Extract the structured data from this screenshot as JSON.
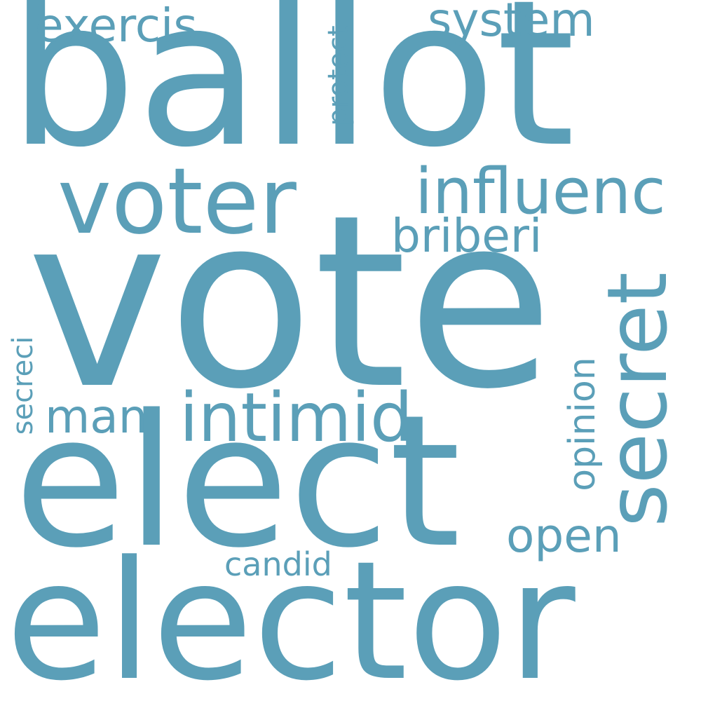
{
  "colors": {
    "background": "#ffffff",
    "word": "#5b9fb8"
  },
  "words": {
    "vote": "vote",
    "ballot": "ballot",
    "elect": "elect",
    "elector": "elector",
    "voter": "voter",
    "secret": "secret",
    "intimid": "intimid",
    "influenc": "influenc",
    "briberi": "briberi",
    "exercis": "exercis",
    "system": "system",
    "protect": "protect",
    "opinion": "opinion",
    "man": "man",
    "open": "open",
    "candid": "candid",
    "secreci": "secreci"
  }
}
